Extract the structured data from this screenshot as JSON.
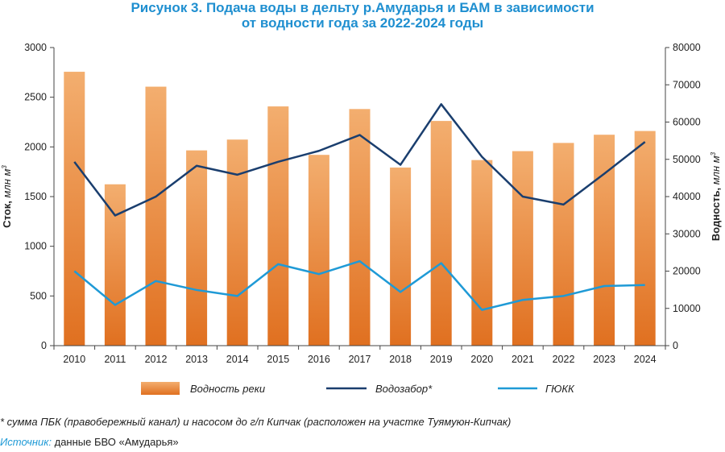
{
  "title_line1": "Рисунок 3. Подача воды в дельту р.Амударья и БАМ в зависимости",
  "title_line2": "от водности года за 2022-2024 годы",
  "footnote": "* сумма ПБК (правобережный канал) и насосом до г/п Кипчак (расположен на участке Туямуюн-Кипчак)",
  "source_label": "Источник:",
  "source_text": " данные БВО «Амударья»",
  "colors": {
    "bar_top": "#f3ae6f",
    "bar_bottom": "#e07020",
    "vodozabor": "#1a3e6e",
    "gyukk": "#1f9ad6",
    "title": "#1f8fd0"
  },
  "chart_data": {
    "type": "bar+line",
    "categories": [
      "2010",
      "2011",
      "2012",
      "2013",
      "2014",
      "2015",
      "2016",
      "2017",
      "2018",
      "2019",
      "2020",
      "2021",
      "2022",
      "2023",
      "2024"
    ],
    "ylabel_left": "Сток,",
    "ylabel_left_unit": "млн м",
    "ylabel_right": "Водность,",
    "ylabel_right_unit": "млн м",
    "unit_superscript": "3",
    "ylim_left": [
      0,
      3000
    ],
    "yticks_left": [
      "0",
      "500",
      "1000",
      "1500",
      "2000",
      "2500",
      "3000"
    ],
    "ylim_right": [
      0,
      80000
    ],
    "yticks_right": [
      "0",
      "10000",
      "20000",
      "30000",
      "40000",
      "50000",
      "60000",
      "70000",
      "80000"
    ],
    "grid": false,
    "legend_position": "bottom",
    "series": [
      {
        "name": "Водность реки",
        "axis": "right",
        "kind": "bar",
        "values": [
          73500,
          43300,
          69500,
          52400,
          55300,
          64200,
          51200,
          63500,
          47800,
          60300,
          49800,
          52200,
          54400,
          56600,
          57600
        ]
      },
      {
        "name": "Водозабор*",
        "axis": "left",
        "kind": "line",
        "values": [
          1850,
          1310,
          1500,
          1810,
          1720,
          1850,
          1960,
          2120,
          1820,
          2430,
          1900,
          1500,
          1420,
          1730,
          2050
        ]
      },
      {
        "name": "ГЮКК",
        "axis": "left",
        "kind": "line",
        "values": [
          750,
          410,
          650,
          560,
          500,
          820,
          720,
          850,
          540,
          830,
          360,
          460,
          500,
          600,
          610
        ]
      }
    ]
  }
}
